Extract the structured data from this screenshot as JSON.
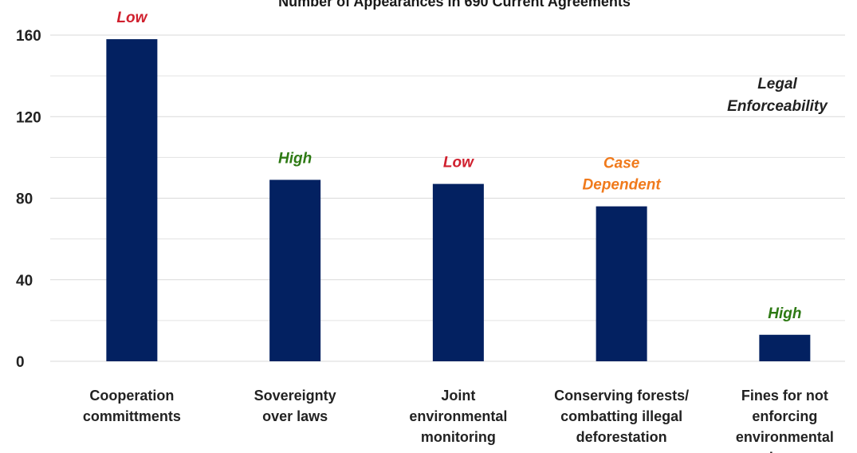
{
  "chart_data": {
    "type": "bar",
    "title": "Number of Appearances in 690 Current Agreements",
    "categories": [
      "Cooperation committments",
      "Sovereignty over laws",
      "Joint environmental monitoring",
      "Conserving forests/ combatting illegal deforestation",
      "Fines for not enforcing environmental laws"
    ],
    "values": [
      158,
      89,
      87,
      76,
      13
    ],
    "color": "#032161",
    "annotations": [
      {
        "text": "Low",
        "color": "#d0202e"
      },
      {
        "text": "High",
        "color": "#2e7a14"
      },
      {
        "text": "Low",
        "color": "#d0202e"
      },
      {
        "text": "Case Dependent",
        "color": "#f07a1c"
      },
      {
        "text": "High",
        "color": "#2e7a14"
      }
    ],
    "legend_note": "Legal Enforceability",
    "ylim": [
      0,
      160
    ],
    "yticks": [
      0,
      40,
      80,
      120,
      160
    ],
    "minor_yticks": [
      20,
      60,
      100,
      140
    ],
    "grid": true
  }
}
